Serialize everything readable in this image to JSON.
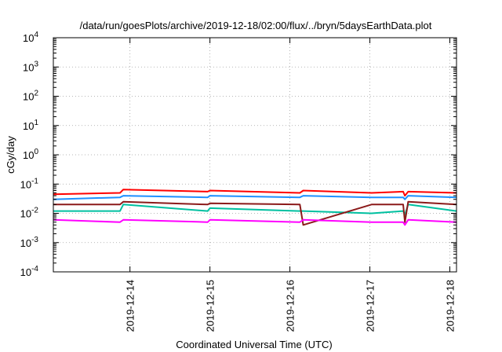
{
  "chart_data": {
    "type": "line",
    "title": "/data/run/goesPlots/archive/2019-12-18/02:00/flux/../bryn/5daysEarthData.plot",
    "xlabel": "Coordinated Universal Time (UTC)",
    "ylabel": "cGy/day",
    "yscale": "log",
    "ylim": [
      0.0001,
      10000
    ],
    "xlim": [
      "2019-12-13 01:00",
      "2019-12-18 02:00"
    ],
    "grid": true,
    "legend": "none",
    "y_ticks": [
      {
        "base": "10",
        "exp": "-4",
        "value": 0.0001
      },
      {
        "base": "10",
        "exp": "-3",
        "value": 0.001
      },
      {
        "base": "10",
        "exp": "-2",
        "value": 0.01
      },
      {
        "base": "10",
        "exp": "-1",
        "value": 0.1
      },
      {
        "base": "10",
        "exp": "0",
        "value": 1
      },
      {
        "base": "10",
        "exp": "1",
        "value": 10
      },
      {
        "base": "10",
        "exp": "2",
        "value": 100
      },
      {
        "base": "10",
        "exp": "3",
        "value": 1000
      },
      {
        "base": "10",
        "exp": "4",
        "value": 10000
      }
    ],
    "x_ticks": [
      "2019-12-14",
      "2019-12-15",
      "2019-12-16",
      "2019-12-17",
      "2019-12-18"
    ],
    "series": [
      {
        "color": "#ff0000",
        "x": [
          "2019-12-13 01:00",
          "2019-12-13 21:00",
          "2019-12-13 22:00",
          "2019-12-14 23:20",
          "2019-12-15 00:00",
          "2019-12-16 03:00",
          "2019-12-16 04:00",
          "2019-12-17 00:30",
          "2019-12-17 10:00",
          "2019-12-17 10:30",
          "2019-12-17 11:30",
          "2019-12-18 02:00"
        ],
        "values": [
          0.045,
          0.05,
          0.065,
          0.055,
          0.06,
          0.05,
          0.06,
          0.05,
          0.055,
          0.04,
          0.055,
          0.05
        ]
      },
      {
        "color": "#1e90ff",
        "x": [
          "2019-12-13 01:00",
          "2019-12-13 21:00",
          "2019-12-13 22:00",
          "2019-12-14 23:20",
          "2019-12-15 00:00",
          "2019-12-16 03:00",
          "2019-12-16 04:00",
          "2019-12-17 00:30",
          "2019-12-17 10:00",
          "2019-12-17 10:30",
          "2019-12-17 11:30",
          "2019-12-18 02:00"
        ],
        "values": [
          0.03,
          0.035,
          0.04,
          0.035,
          0.04,
          0.035,
          0.04,
          0.035,
          0.035,
          0.03,
          0.04,
          0.035
        ]
      },
      {
        "color": "#00c0a0",
        "x": [
          "2019-12-13 01:00",
          "2019-12-13 21:00",
          "2019-12-13 22:00",
          "2019-12-14 23:20",
          "2019-12-15 00:00",
          "2019-12-16 03:00",
          "2019-12-16 04:00",
          "2019-12-17 00:30",
          "2019-12-17 10:00",
          "2019-12-17 10:30",
          "2019-12-17 11:30",
          "2019-12-18 02:00"
        ],
        "values": [
          0.012,
          0.012,
          0.02,
          0.012,
          0.015,
          0.012,
          0.012,
          0.01,
          0.012,
          0.009,
          0.02,
          0.012
        ]
      },
      {
        "color": "#8b1a1a",
        "x": [
          "2019-12-13 01:00",
          "2019-12-13 21:00",
          "2019-12-13 22:00",
          "2019-12-14 23:20",
          "2019-12-15 00:00",
          "2019-12-16 03:00",
          "2019-12-16 04:00",
          "2019-12-17 00:30",
          "2019-12-17 10:00",
          "2019-12-17 10:30",
          "2019-12-17 11:30",
          "2019-12-18 02:00"
        ],
        "values": [
          0.02,
          0.02,
          0.025,
          0.02,
          0.022,
          0.02,
          0.004,
          0.02,
          0.02,
          0.005,
          0.025,
          0.02
        ]
      },
      {
        "color": "#ff00ff",
        "x": [
          "2019-12-13 01:00",
          "2019-12-13 21:00",
          "2019-12-13 22:00",
          "2019-12-14 23:20",
          "2019-12-15 00:00",
          "2019-12-16 03:00",
          "2019-12-16 04:00",
          "2019-12-17 00:30",
          "2019-12-17 10:00",
          "2019-12-17 10:30",
          "2019-12-17 11:30",
          "2019-12-18 02:00"
        ],
        "values": [
          0.006,
          0.005,
          0.006,
          0.005,
          0.006,
          0.005,
          0.006,
          0.005,
          0.005,
          0.004,
          0.006,
          0.005
        ]
      }
    ]
  }
}
